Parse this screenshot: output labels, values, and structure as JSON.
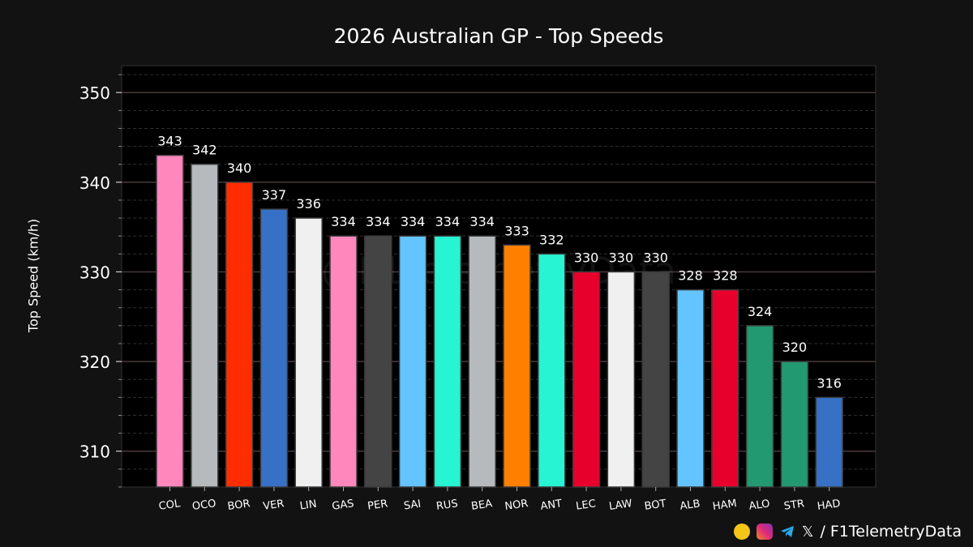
{
  "chart_data": {
    "type": "bar",
    "title": "2026 Australian GP - Top Speeds",
    "xlabel": "",
    "ylabel": "Top Speed (km/h)",
    "ylim": [
      306,
      353
    ],
    "yticks": [
      310,
      320,
      330,
      340,
      350
    ],
    "grid": true,
    "categories": [
      "COL",
      "OCO",
      "BOR",
      "VER",
      "LIN",
      "GAS",
      "PER",
      "SAI",
      "RUS",
      "BEA",
      "NOR",
      "ANT",
      "LEC",
      "LAW",
      "BOT",
      "ALB",
      "HAM",
      "ALO",
      "STR",
      "HAD"
    ],
    "values": [
      343,
      342,
      340,
      337,
      336,
      334,
      334,
      334,
      334,
      334,
      333,
      332,
      330,
      330,
      330,
      328,
      328,
      324,
      320,
      316
    ],
    "colors": [
      "#ff87bc",
      "#b6babd",
      "#ff2d00",
      "#3671c6",
      "#f0f0f0",
      "#ff87bc",
      "#444444",
      "#64c4ff",
      "#27f4d2",
      "#b6babd",
      "#ff8000",
      "#27f4d2",
      "#e8002d",
      "#f0f0f0",
      "#444444",
      "#64c4ff",
      "#e8002d",
      "#229971",
      "#229971",
      "#3671c6"
    ]
  },
  "watermark": "@F1TelemetryData",
  "footer": {
    "icons": [
      "kofi-icon",
      "instagram-icon",
      "telegram-icon",
      "x-icon"
    ],
    "x_glyph": "𝕏",
    "handle": "/ F1TelemetryData"
  }
}
